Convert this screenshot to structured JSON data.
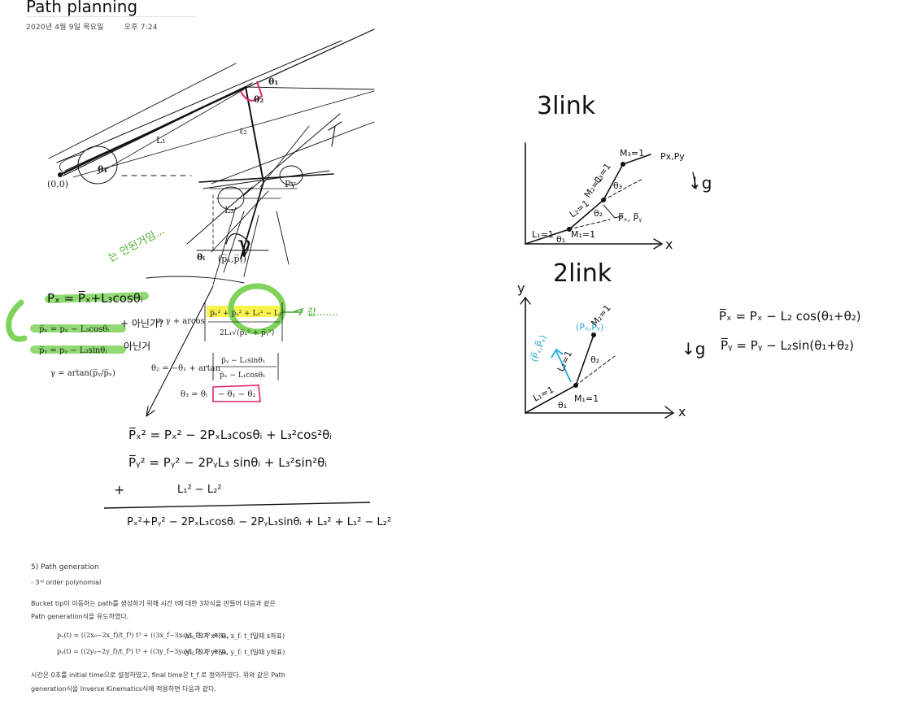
{
  "page": {
    "title": "Path planning",
    "date": "2020년 4월 9일 목요일",
    "time": "오후 7:24"
  },
  "figure": {
    "origin": "(0,0)",
    "l1": "L₁",
    "l2": "ℓ₂",
    "l3": "L₃",
    "theta1": "θ₁",
    "theta2": "θ₂",
    "theta1_top": "θ₁",
    "px_py": "(p̅ₓ,p̅ᵧ)",
    "py_label": "Py",
    "gamma": "γ",
    "theta_i_bottom": "θᵢ"
  },
  "equations": {
    "handwritten_px": "Pₓ = P̅ₓ+L₃cosθᵢ",
    "green_note": "는 안된거임...",
    "px_bar": "p̅ₓ = pₓ − L₃cosθᵢ",
    "py_bar": "p̅ᵧ = pᵧ − L₃sinθᵢ",
    "gamma_eq": "γ = artan(p̅ᵧ/p̅ₓ)",
    "theta1_eq": "≐ γ + arcos",
    "theta1_num": "p̅ₓ² + p̅ᵧ² + L₁² − L₂²",
    "theta1_den": "2L₁√(p̅ₓ² + p̅ᵧ²)",
    "not_note1": "+ 아닌가?",
    "not_note2": "아닌거 ",
    "theta2_eq": "θ₂ = −θ₁ + artan",
    "theta2_num": "p̅ᵧ − L₁sinθ₁",
    "theta2_den": "p̅ₓ − L₁cosθ₁",
    "theta3_eq": "θ₃ = θᵢ",
    "theta3_box": "− θ₁ − θ₂",
    "arrow_note": "값.......",
    "der1": "P̅ₓ² = Pₓ² − 2PₓL₃cosθᵢ + L₃²cos²θᵢ",
    "der2": "P̅ᵧ² = Pᵧ² − 2PᵧL₃ sinθᵢ + L₃²sin²θᵢ",
    "der_plus": "+",
    "der3": "L₁² − L₂²",
    "der_sum": "Pₓ²+Pᵧ² − 2PₓL₃cosθᵢ − 2PᵧL₃sinθᵢ + L₃² + L₁² − L₂²"
  },
  "three_link": {
    "title": "3link",
    "p_label": "Px,Py",
    "m3": "M₃=1",
    "l3": "L₃=1",
    "m2": "M₂=1",
    "theta3": "θ₃",
    "l2": "L₂=1",
    "theta2": "θ₂",
    "pbar": "P̅ₓ, P̅ᵧ",
    "l1": "L₁=1",
    "theta1": "θ₁",
    "m1": "M₁=1",
    "g": "↓g",
    "x_axis": "x"
  },
  "two_link": {
    "title": "2link",
    "y_axis": "y",
    "pxy": "(Pₓ,Pᵧ)",
    "m2": "M₂=1",
    "pbar": "(P̅ₓ,P̅ᵧ)",
    "l2": "L₂=1",
    "theta2": "θ₂",
    "l1": "L₁=1",
    "theta1": "θ₁",
    "m1": "M₁=1",
    "x_axis": "x",
    "g": "↓g",
    "eq1": "P̅ₓ = Pₓ − L₂ cos(θ₁+θ₂)",
    "eq2": "P̅ᵧ = Pᵧ − L₂sin(θ₁+θ₂)"
  },
  "section": {
    "heading": "5)   Path generation",
    "bullet": "-    3ʳᵈ order polynomial",
    "para1": "Bucket tip이 이동하는 path를 생성하기 위해 시간 t에 대한 3차식을 만들어 다음과 같은",
    "para2": "Path generation식을 유도하였다.",
    "eq_x": "pₓ(t) = ((2x₀−2x_f)/t_f³) t³ + ((3x_f−3x₀)/t_f²) t² + x₀,",
    "eq_x_note": "(x₀: 초기 x좌표,  x_f: t_f일때 x좌표)",
    "eq_y": "pᵧ(t) = ((2y₀−2y_f)/t_f³) t³ + ((3y_f−3y₀)/t_f²) t² + y₀,",
    "eq_y_note": "(y₀: 초기 y좌표,  y_f: t_f일때 y좌표)",
    "para3": "시간은 0초를 initial time으로 설정하였고, final time은  t_f 로 정의하였다. 위와 같은 Path",
    "para4": "generation식을 Inverse Kinematics식에 적용하면 다음과 같다."
  },
  "colors": {
    "ink": "#111111",
    "highlight_green": "#7ed35a",
    "highlight_yellow": "#f7f23a",
    "accent_pink": "#e0246f",
    "accent_cyan": "#22a8d8",
    "note_green": "#4caf2a"
  }
}
